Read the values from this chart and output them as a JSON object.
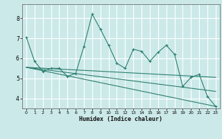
{
  "xlabel": "Humidex (Indice chaleur)",
  "xlim": [
    -0.5,
    23.5
  ],
  "ylim": [
    3.5,
    8.7
  ],
  "yticks": [
    4,
    5,
    6,
    7,
    8
  ],
  "xticks": [
    0,
    1,
    2,
    3,
    4,
    5,
    6,
    7,
    8,
    9,
    10,
    11,
    12,
    13,
    14,
    15,
    16,
    17,
    18,
    19,
    20,
    21,
    22,
    23
  ],
  "bg_color": "#cce9e9",
  "line_color": "#2a7d6e",
  "grid_color": "#ffffff",
  "lines": [
    {
      "x": [
        0,
        1,
        2,
        3,
        4,
        5,
        6,
        7,
        8,
        9,
        10,
        11,
        12,
        13,
        14,
        15,
        16,
        17,
        18,
        19,
        20,
        21,
        22,
        23
      ],
      "y": [
        7.05,
        5.85,
        5.35,
        5.5,
        5.5,
        5.1,
        5.25,
        6.6,
        8.2,
        7.45,
        6.65,
        5.75,
        5.5,
        6.45,
        6.35,
        5.85,
        6.3,
        6.65,
        6.2,
        4.6,
        5.05,
        5.2,
        4.1,
        3.6
      ],
      "marker": true
    },
    {
      "x": [
        0,
        23
      ],
      "y": [
        5.55,
        5.05
      ],
      "marker": false
    },
    {
      "x": [
        0,
        23
      ],
      "y": [
        5.55,
        4.35
      ],
      "marker": false
    },
    {
      "x": [
        0,
        23
      ],
      "y": [
        5.55,
        3.6
      ],
      "marker": false
    }
  ]
}
